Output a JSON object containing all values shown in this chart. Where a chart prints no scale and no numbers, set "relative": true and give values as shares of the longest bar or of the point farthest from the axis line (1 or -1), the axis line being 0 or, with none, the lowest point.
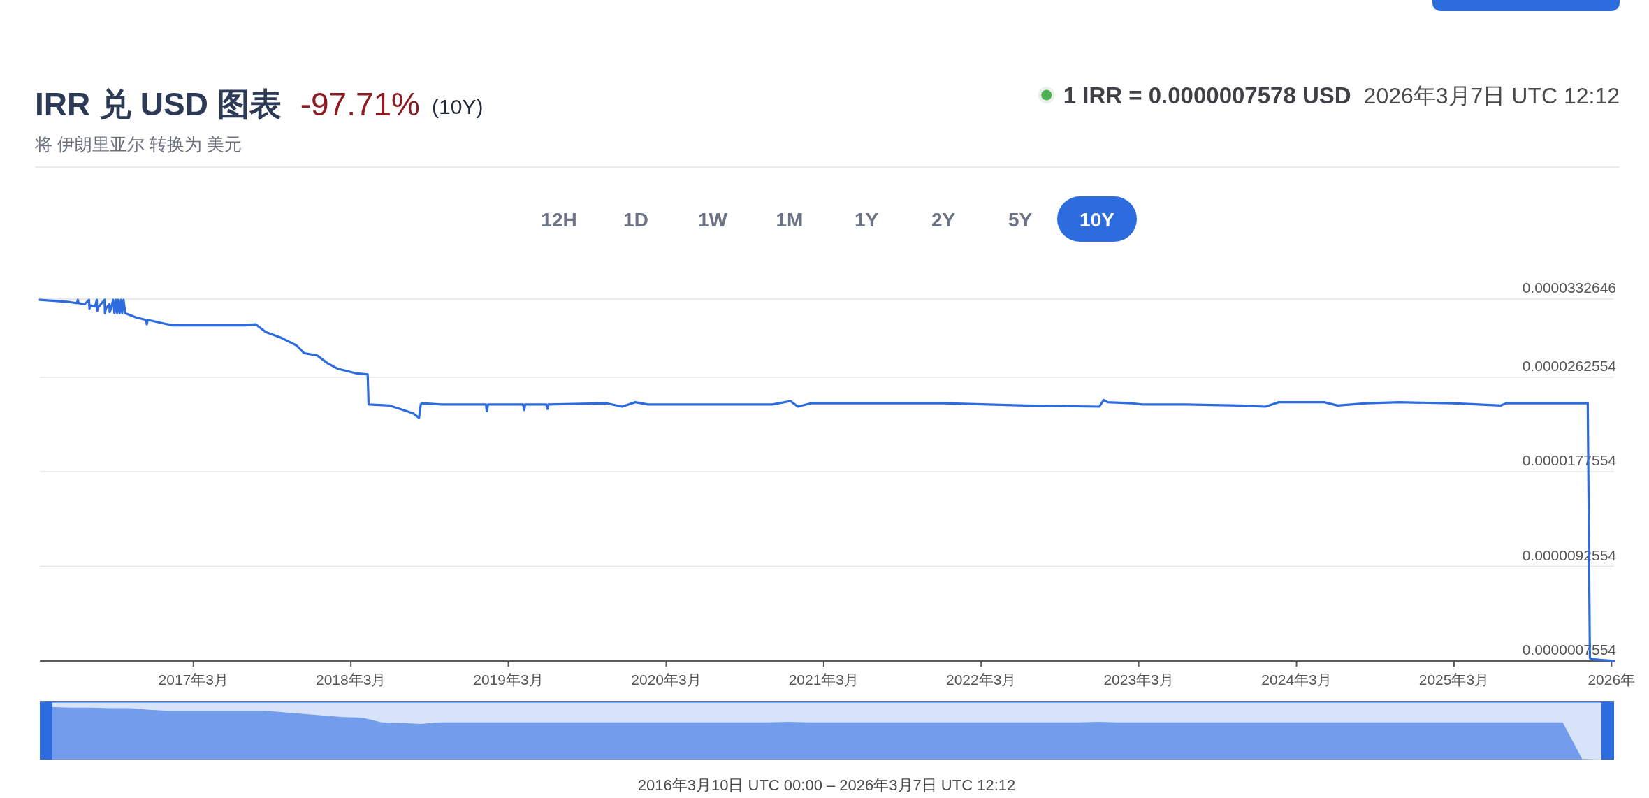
{
  "chart_data": [
    {
      "type": "line",
      "title": "IRR 兑 USD 图表",
      "subtitle": "将 伊朗里亚尔 转换为 美元",
      "annotations": [
        "-97.71%",
        "(10Y)",
        "1 IRR = 0.0000007578 USD",
        "2026年3月7日 UTC 12:12",
        "12H",
        "1D",
        "1W",
        "1M",
        "1Y",
        "2Y",
        "5Y",
        "10Y"
      ],
      "x": [
        "2016-03-10",
        "2016-05-17",
        "2016-06-04",
        "2016-06-06",
        "2016-06-08",
        "2016-06-22",
        "2016-07-02",
        "2016-07-03",
        "2016-07-05",
        "2016-07-16",
        "2016-07-20",
        "2016-07-21",
        "2016-07-23",
        "2016-08-07",
        "2016-08-08",
        "2016-08-10",
        "2016-08-18",
        "2016-08-19",
        "2016-08-21",
        "2016-08-27",
        "2016-08-30",
        "2016-09-02",
        "2016-09-05",
        "2016-09-08",
        "2016-09-11",
        "2016-09-14",
        "2016-09-17",
        "2016-09-20",
        "2016-09-24",
        "2016-10-20",
        "2016-11-11",
        "2016-11-13",
        "2016-11-15",
        "2016-12-19",
        "2017-01-12",
        "2017-04-06",
        "2017-06-29",
        "2017-07-23",
        "2017-08-16",
        "2017-09-20",
        "2017-10-26",
        "2017-11-13",
        "2017-12-13",
        "2018-01-06",
        "2018-01-30",
        "2018-03-13",
        "2018-04-09",
        "2018-04-11",
        "2018-05-30",
        "2018-06-23",
        "2018-07-23",
        "2018-08-06",
        "2018-08-10",
        "2018-08-12",
        "2018-09-27",
        "2019-01-08",
        "2019-01-10",
        "2019-01-13",
        "2019-04-04",
        "2019-04-07",
        "2019-04-09",
        "2019-05-28",
        "2019-05-31",
        "2019-06-02",
        "2019-10-15",
        "2019-11-20",
        "2019-12-20",
        "2020-01-19",
        "2020-05-17",
        "2020-11-02",
        "2020-12-14",
        "2020-12-31",
        "2021-01-30",
        "2021-12-06",
        "2022-06-10",
        "2022-11-30",
        "2022-12-10",
        "2022-12-19",
        "2023-02-13",
        "2023-03-10",
        "2023-06-17",
        "2023-10-19",
        "2023-12-20",
        "2024-01-20",
        "2024-03-28",
        "2024-05-04",
        "2024-06-04",
        "2024-08-11",
        "2024-10-25",
        "2025-02-26",
        "2025-06-17",
        "2025-06-30",
        "2026-01-05",
        "2026-01-10",
        "2026-01-20",
        "2026-03-07"
      ],
      "series": [
        {
          "color": "#2d6cdf",
          "values": [
            3.32e-05,
            3.3e-05,
            3.29e-05,
            3.32e-05,
            3.29e-05,
            3.28e-05,
            3.32e-05,
            3.24e-05,
            3.27e-05,
            3.26e-05,
            3.32e-05,
            3.22e-05,
            3.25e-05,
            3.32e-05,
            3.2e-05,
            3.24e-05,
            3.28e-05,
            3.21e-05,
            3.23e-05,
            3.32e-05,
            3.2e-05,
            3.32e-05,
            3.2e-05,
            3.32e-05,
            3.2e-05,
            3.32e-05,
            3.2e-05,
            3.32e-05,
            3.2e-05,
            3.16e-05,
            3.14e-05,
            3.1e-05,
            3.14e-05,
            3.11e-05,
            3.09e-05,
            3.09e-05,
            3.09e-05,
            3.1e-05,
            3.03e-05,
            2.98e-05,
            2.91e-05,
            2.84e-05,
            2.82e-05,
            2.75e-05,
            2.7e-05,
            2.66e-05,
            2.65e-05,
            2.38e-05,
            2.37e-05,
            2.34e-05,
            2.3e-05,
            2.26e-05,
            2.38e-05,
            2.39e-05,
            2.38e-05,
            2.38e-05,
            2.32e-05,
            2.38e-05,
            2.38e-05,
            2.33e-05,
            2.38e-05,
            2.38e-05,
            2.34e-05,
            2.38e-05,
            2.39e-05,
            2.36e-05,
            2.4e-05,
            2.38e-05,
            2.38e-05,
            2.38e-05,
            2.41e-05,
            2.36e-05,
            2.39e-05,
            2.39e-05,
            2.37e-05,
            2.36e-05,
            2.42e-05,
            2.4e-05,
            2.39e-05,
            2.38e-05,
            2.38e-05,
            2.37e-05,
            2.36e-05,
            2.4e-05,
            2.4e-05,
            2.4e-05,
            2.37e-05,
            2.39e-05,
            2.4e-05,
            2.39e-05,
            2.37e-05,
            2.39e-05,
            2.39e-05,
            1e-06,
            9e-07,
            7.578e-07
          ]
        }
      ],
      "xlim": [
        "2016-03-10",
        "2026-03-07"
      ],
      "xticks": [
        {
          "value": "2017-03-01",
          "label": "2017年3月"
        },
        {
          "value": "2018-03-01",
          "label": "2018年3月"
        },
        {
          "value": "2019-03-01",
          "label": "2019年3月"
        },
        {
          "value": "2020-03-01",
          "label": "2020年3月"
        },
        {
          "value": "2021-03-01",
          "label": "2021年3月"
        },
        {
          "value": "2022-03-01",
          "label": "2022年3月"
        },
        {
          "value": "2023-03-01",
          "label": "2023年3月"
        },
        {
          "value": "2024-03-01",
          "label": "2024年3月"
        },
        {
          "value": "2025-03-01",
          "label": "2025年3月"
        },
        {
          "value": "2026-03-01",
          "label": "2026年"
        }
      ],
      "ylim": [
        7.554e-07,
        3.32646e-05
      ],
      "yticks": [
        {
          "value": 7.554e-07,
          "label": "0.0000007554"
        },
        {
          "value": 9.2554e-06,
          "label": "0.0000092554"
        },
        {
          "value": 1.77554e-05,
          "label": "0.0000177554"
        },
        {
          "value": 2.62554e-05,
          "label": "0.0000262554"
        },
        {
          "value": 3.32646e-05,
          "label": "0.0000332646"
        }
      ],
      "grid": "y"
    },
    {
      "type": "area",
      "relative": true,
      "annotations": [
        "2016年3月10日 UTC 00:00 – 2026年3月7日 UTC 12:12"
      ],
      "categories": [
        null,
        null,
        null,
        null,
        null,
        null,
        null,
        null,
        null,
        null,
        null,
        null,
        null,
        null,
        null,
        null,
        null,
        null,
        null,
        null,
        null,
        null,
        null,
        null,
        null,
        null,
        null,
        null,
        null,
        null,
        null,
        null,
        null,
        null,
        null,
        null,
        null,
        null,
        null,
        null,
        null,
        null,
        null,
        null,
        null,
        null,
        null,
        null,
        null,
        null,
        null,
        null,
        null,
        null,
        null,
        null,
        null,
        null,
        null,
        null,
        null,
        null,
        null,
        null,
        null,
        null,
        null,
        null,
        null,
        null,
        null,
        null,
        null,
        null,
        null,
        null,
        null,
        null,
        null,
        null,
        null
      ],
      "series": [
        {
          "color": "#739ceb",
          "values": [
            1,
            0.99,
            0.99,
            0.98,
            0.98,
            0.95,
            0.93,
            0.93,
            0.93,
            0.93,
            0.93,
            0.93,
            0.9,
            0.87,
            0.84,
            0.81,
            0.8,
            0.71,
            0.7,
            0.68,
            0.71,
            0.71,
            0.71,
            0.71,
            0.71,
            0.71,
            0.71,
            0.71,
            0.71,
            0.71,
            0.71,
            0.71,
            0.71,
            0.71,
            0.71,
            0.71,
            0.71,
            0.71,
            0.72,
            0.71,
            0.71,
            0.71,
            0.71,
            0.71,
            0.71,
            0.71,
            0.71,
            0.71,
            0.71,
            0.71,
            0.71,
            0.71,
            0.71,
            0.71,
            0.72,
            0.71,
            0.71,
            0.71,
            0.71,
            0.71,
            0.71,
            0.71,
            0.71,
            0.71,
            0.71,
            0.71,
            0.71,
            0.71,
            0.71,
            0.71,
            0.71,
            0.71,
            0.71,
            0.71,
            0.71,
            0.71,
            0.71,
            0.71,
            0.71,
            0.01,
            0
          ]
        }
      ]
    }
  ]
}
